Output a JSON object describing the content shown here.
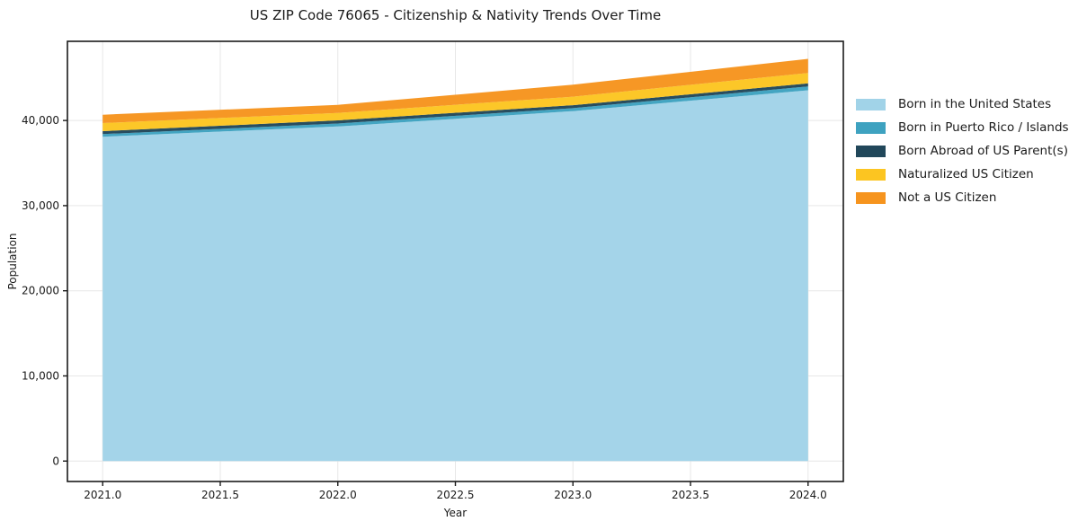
{
  "chart_data": {
    "type": "area",
    "stacked": true,
    "title": "US ZIP Code 76065 - Citizenship & Nativity Trends Over Time",
    "xlabel": "Year",
    "ylabel": "Population",
    "x": [
      2021,
      2022,
      2023,
      2024
    ],
    "series": [
      {
        "name": "Born in the United States",
        "color": "#a1d3e8",
        "values": [
          38100,
          39300,
          41100,
          43550
        ]
      },
      {
        "name": "Born in Puerto Rico / Islands",
        "color": "#3ea2c0",
        "values": [
          300,
          350,
          350,
          450
        ]
      },
      {
        "name": "Born Abroad of US Parent(s)",
        "color": "#21475a",
        "values": [
          350,
          360,
          350,
          360
        ]
      },
      {
        "name": "Naturalized US Citizen",
        "color": "#fcc521",
        "values": [
          950,
          880,
          1000,
          1230
        ]
      },
      {
        "name": "Not a US Citizen",
        "color": "#f6941e",
        "values": [
          980,
          950,
          1400,
          1650
        ]
      }
    ],
    "xlim": [
      2020.85,
      2024.15
    ],
    "ylim": [
      -2400,
      49300
    ],
    "xticks": {
      "values": [
        2021,
        2021.5,
        2022,
        2022.5,
        2023,
        2023.5,
        2024
      ],
      "labels": [
        "2021.0",
        "2021.5",
        "2022.0",
        "2022.5",
        "2023.0",
        "2023.5",
        "2024.0"
      ]
    },
    "yticks": {
      "values": [
        0,
        10000,
        20000,
        30000,
        40000
      ],
      "labels": [
        "0",
        "10,000",
        "20,000",
        "30,000",
        "40,000"
      ]
    },
    "grid": true,
    "legend_position": "right",
    "colors": {
      "text": "#1a1a1a",
      "grid": "#e7e7e7",
      "spine": "#1a1a1a",
      "background": "#ffffff"
    }
  }
}
